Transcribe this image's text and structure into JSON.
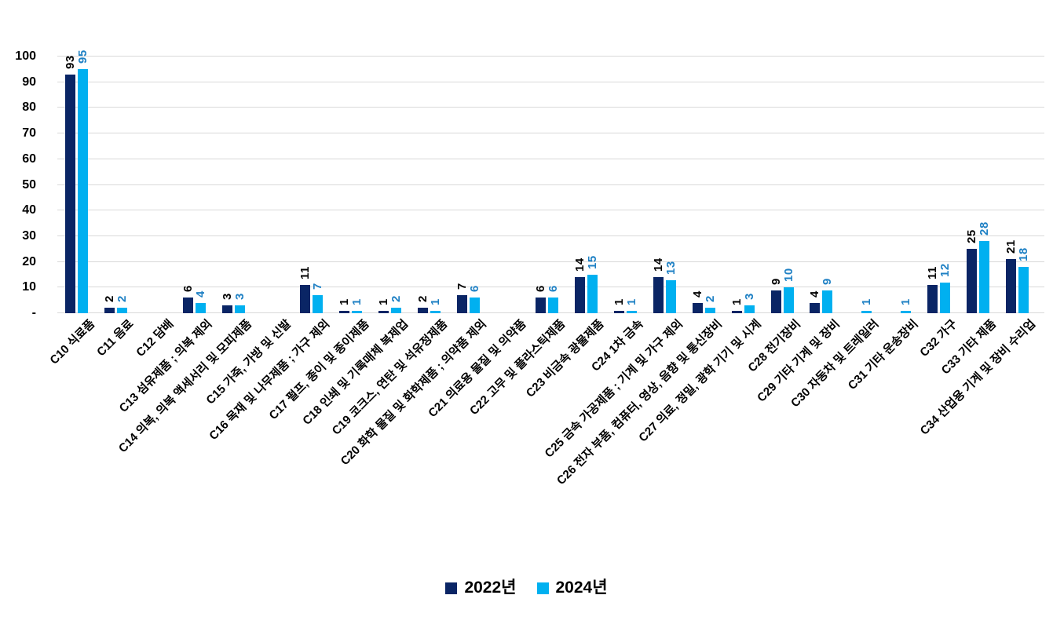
{
  "chart_data": {
    "type": "bar",
    "title": "",
    "xlabel": "",
    "ylabel": "",
    "categories": [
      "C10 식료품",
      "C11 음료",
      "C12 담배",
      "C13 섬유제품 ; 의복 제외",
      "C14 의복, 의복 액세서리 및 모피제품",
      "C15 가죽, 가방 및 신발",
      "C16 목재 및 나무제품 ; 가구 제외",
      "C17 펄프, 종이 및 종이제품",
      "C18 인쇄 및 기록매체 복제업",
      "C19 코크스, 연탄 및 석유정제품",
      "C20 화학 물질 및 화학제품 ; 의약품 제외",
      "C21 의료용 물질 및 의약품",
      "C22 고무 및 플라스틱제품",
      "C23 비금속 광물제품",
      "C24 1차 금속",
      "C25 금속 가공제품 ; 기계 및 가구 제외",
      "C26 전자 부품, 컴퓨터, 영상, 음향 및 통신장비",
      "C27 의료, 정밀, 광학 기기 및 시계",
      "C28 전기장비",
      "C29 기타 기계 및 장비",
      "C30 자동차 및 트레일러",
      "C31 기타 운송장비",
      "C32 가구",
      "C33 기타 제품",
      "C34 산업용 기계 및 장비 수리업"
    ],
    "series": [
      {
        "name": "2022년",
        "color": "#0a2565",
        "label_color": "#000000",
        "values": [
          93,
          2,
          null,
          6,
          3,
          null,
          11,
          1,
          1,
          2,
          7,
          null,
          6,
          14,
          1,
          14,
          4,
          1,
          9,
          4,
          null,
          null,
          11,
          25,
          21
        ]
      },
      {
        "name": "2024년",
        "color": "#00b0f0",
        "label_color": "#1e80c4",
        "values": [
          95,
          2,
          null,
          4,
          3,
          null,
          7,
          1,
          2,
          1,
          6,
          null,
          6,
          15,
          1,
          13,
          2,
          3,
          10,
          9,
          1,
          1,
          12,
          28,
          18
        ]
      }
    ],
    "ylim": [
      0,
      100
    ],
    "ytick_step": 10,
    "ytick_labels": [
      "-",
      "10",
      "20",
      "30",
      "40",
      "50",
      "60",
      "70",
      "80",
      "90",
      "100"
    ],
    "grid": true,
    "gridline_color": "#d9d9d9",
    "background": "#ffffff",
    "legend_position": "bottom",
    "value_labels_rotated": true
  }
}
